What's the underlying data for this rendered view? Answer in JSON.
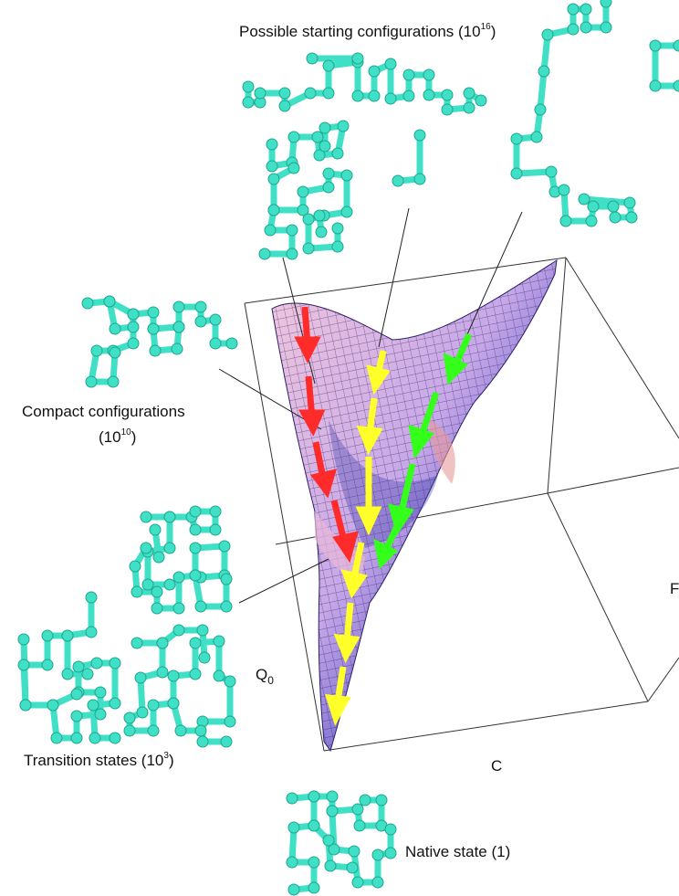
{
  "labels": {
    "starting": {
      "text": "Possible starting configurations (10",
      "exp": "16",
      "close": ")"
    },
    "compact": {
      "line1": "Compact configurations",
      "pre": "(10",
      "exp": "10",
      "close": ")"
    },
    "transition": {
      "text": "Transition states (10",
      "exp": "3",
      "close": ")"
    },
    "native": {
      "text": "Native state (1)"
    }
  },
  "axes": {
    "q0": "Q",
    "q0_sub": "0",
    "c": "C",
    "right_partial": "F"
  },
  "colors": {
    "chain": "#3fe0c6",
    "chain_dark": "#1fa690",
    "surface_fill": "#c9a9e6",
    "surface_mesh": "#2c1f6b",
    "arrow_red": "#ff2a2a",
    "arrow_yellow": "#ffff2a",
    "arrow_green": "#33ff1a",
    "box_line": "#333333"
  }
}
